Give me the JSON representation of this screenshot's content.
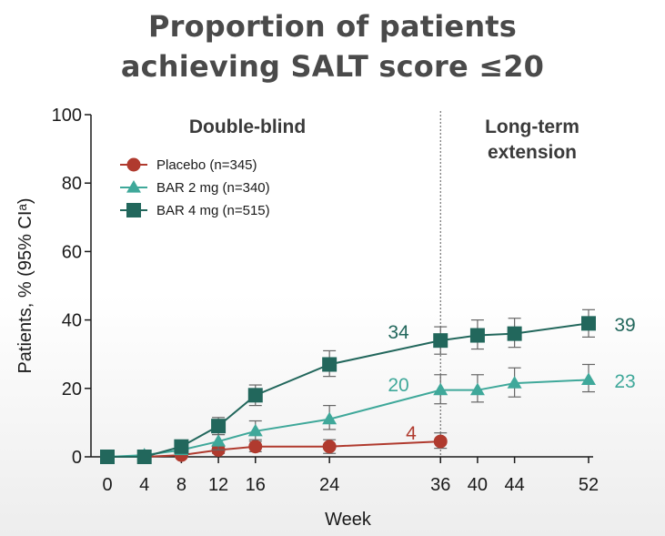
{
  "title_line1": "Proportion of patients",
  "title_line2": "achieving SALT score ≤20",
  "colors": {
    "placebo": "#b03a2e",
    "bar2": "#3fa89a",
    "bar4": "#22675c",
    "axis": "#1a1a1a",
    "title": "#4a4a4a"
  },
  "chart_data": {
    "type": "line",
    "xlabel": "Week",
    "ylabel": "Patients, % (95% CIᵃ)",
    "xlim": [
      0,
      52
    ],
    "ylim": [
      0,
      100
    ],
    "x_ticks": [
      0,
      4,
      8,
      12,
      16,
      24,
      36,
      40,
      44,
      52
    ],
    "y_ticks": [
      0,
      20,
      40,
      60,
      80,
      100
    ],
    "grid": false,
    "legend_position": "top-left",
    "phase_divider_x": 36,
    "phases": [
      "Double-blind",
      "Long-term",
      "extension"
    ],
    "series": [
      {
        "name": "Placebo (n=345)",
        "marker": "circle",
        "color_key": "placebo",
        "x": [
          0,
          4,
          8,
          12,
          16,
          24,
          36
        ],
        "y": [
          0,
          0,
          0.5,
          2,
          3,
          3,
          4.5
        ],
        "ci_low": [
          0,
          0,
          0,
          1,
          1.5,
          1,
          2.5
        ],
        "ci_high": [
          0,
          0,
          1,
          3,
          4.5,
          5,
          7
        ],
        "end_label": "4"
      },
      {
        "name": "BAR 2 mg (n=340)",
        "marker": "triangle",
        "color_key": "bar2",
        "x": [
          0,
          4,
          8,
          12,
          16,
          24,
          36,
          40,
          44,
          52
        ],
        "y": [
          0,
          0.5,
          2,
          4.5,
          7.5,
          11,
          19.5,
          19.5,
          21.5,
          22.5
        ],
        "ci_low": [
          0,
          0,
          1,
          2,
          5,
          8,
          15.5,
          16,
          17.5,
          19
        ],
        "ci_high": [
          0,
          1,
          3,
          6.5,
          10.5,
          15,
          24,
          24,
          26,
          27
        ],
        "mid_label": "20",
        "end_label": "23"
      },
      {
        "name": "BAR 4 mg (n=515)",
        "marker": "square",
        "color_key": "bar4",
        "x": [
          0,
          4,
          8,
          12,
          16,
          24,
          36,
          40,
          44,
          52
        ],
        "y": [
          0,
          0,
          3,
          9,
          18,
          27,
          34,
          35.5,
          36,
          39
        ],
        "ci_low": [
          0,
          0,
          1.5,
          6.5,
          15,
          23.5,
          30,
          31.5,
          32,
          35
        ],
        "ci_high": [
          0,
          1,
          4.5,
          11.5,
          21,
          31,
          38,
          40,
          40.5,
          43
        ],
        "mid_label": "34",
        "end_label": "39"
      }
    ]
  }
}
